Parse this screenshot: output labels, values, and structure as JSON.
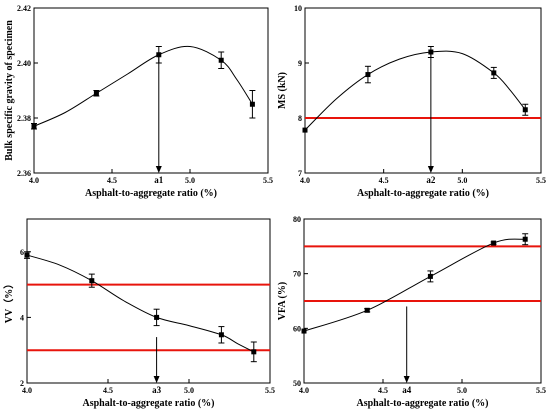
{
  "chart_data": [
    {
      "type": "line",
      "xlabel": "Asphalt-to-aggregate ratio (%)",
      "ylabel": "Bulk specific gravity of specimen",
      "xlim": [
        4.0,
        5.5
      ],
      "ylim": [
        2.36,
        2.42
      ],
      "xticks": [
        "4.0",
        "4.5",
        "5.0",
        "5.5"
      ],
      "yticks": [
        "2.36",
        "2.38",
        "2.40",
        "2.42"
      ],
      "points": {
        "x": [
          4.0,
          4.4,
          4.8,
          5.2,
          5.4
        ],
        "y": [
          2.377,
          2.389,
          2.403,
          2.401,
          2.385
        ],
        "err": [
          0.001,
          0.001,
          0.003,
          0.003,
          0.005
        ]
      },
      "curve": {
        "x": [
          4.0,
          4.2,
          4.4,
          4.6,
          4.8,
          5.0,
          5.2,
          5.3,
          5.4
        ],
        "y": [
          2.377,
          2.382,
          2.389,
          2.396,
          2.403,
          2.406,
          2.401,
          2.394,
          2.385
        ]
      },
      "hlines": [],
      "marker": {
        "label": "a1",
        "x": 4.8,
        "y_top": 2.403
      }
    },
    {
      "type": "line",
      "xlabel": "Asphalt-to-aggregate ratio (%)",
      "ylabel": "MS (kN)",
      "xlim": [
        4.0,
        5.5
      ],
      "ylim": [
        7,
        10
      ],
      "xticks": [
        "4.0",
        "4.5",
        "5.0",
        "5.5"
      ],
      "yticks": [
        "7",
        "8",
        "9",
        "10"
      ],
      "points": {
        "x": [
          4.0,
          4.4,
          4.8,
          5.2,
          5.4
        ],
        "y": [
          7.78,
          8.79,
          9.2,
          8.82,
          8.15
        ],
        "err": [
          0,
          0.15,
          0.1,
          0.1,
          0.1
        ]
      },
      "curve": {
        "x": [
          4.0,
          4.2,
          4.4,
          4.6,
          4.8,
          5.0,
          5.2,
          5.3,
          5.4
        ],
        "y": [
          7.78,
          8.35,
          8.79,
          9.07,
          9.2,
          9.17,
          8.82,
          8.52,
          8.15
        ]
      },
      "hlines": [
        8.0
      ],
      "marker": {
        "label": "a2",
        "x": 4.8,
        "y_top": 9.2
      }
    },
    {
      "type": "line",
      "xlabel": "Asphalt-to-aggregate ratio (%)",
      "ylabel": "VV（%）",
      "xlim": [
        4.0,
        5.5
      ],
      "ylim": [
        2,
        7
      ],
      "xticks": [
        "4.0",
        "4.5",
        "5.0",
        "5.5"
      ],
      "yticks": [
        "2",
        "4",
        "6"
      ],
      "points": {
        "x": [
          4.0,
          4.4,
          4.8,
          5.2,
          5.4
        ],
        "y": [
          5.9,
          5.12,
          4.0,
          3.47,
          2.95
        ],
        "err": [
          0.1,
          0.2,
          0.25,
          0.25,
          0.3
        ]
      },
      "curve": {
        "x": [
          4.0,
          4.2,
          4.4,
          4.6,
          4.8,
          5.0,
          5.2,
          5.3,
          5.4
        ],
        "y": [
          5.9,
          5.6,
          5.12,
          4.5,
          4.0,
          3.75,
          3.47,
          3.2,
          2.95
        ]
      },
      "hlines": [
        5.0,
        3.0
      ],
      "marker": {
        "label": "a3",
        "x": 4.8,
        "y_top": 3.4
      }
    },
    {
      "type": "line",
      "xlabel": "Asphalt-to-aggregate ratio (%)",
      "ylabel": "VFA (%)",
      "xlim": [
        4.0,
        5.5
      ],
      "ylim": [
        50,
        80
      ],
      "xticks": [
        "4.0",
        "4.5",
        "5.0",
        "5.5"
      ],
      "yticks": [
        "50",
        "60",
        "70",
        "80"
      ],
      "points": {
        "x": [
          4.0,
          4.4,
          4.8,
          5.2,
          5.4
        ],
        "y": [
          59.5,
          63.3,
          69.5,
          75.6,
          76.3
        ],
        "err": [
          0,
          0.3,
          1.0,
          0.2,
          1.0
        ]
      },
      "curve": {
        "x": [
          4.0,
          4.4,
          4.8,
          5.2,
          5.4
        ],
        "y": [
          59.5,
          63.3,
          69.5,
          75.6,
          76.3
        ]
      },
      "hlines": [
        75.0,
        65.0
      ],
      "marker": {
        "label": "a4",
        "x": 4.65,
        "y_top": 64
      }
    }
  ]
}
